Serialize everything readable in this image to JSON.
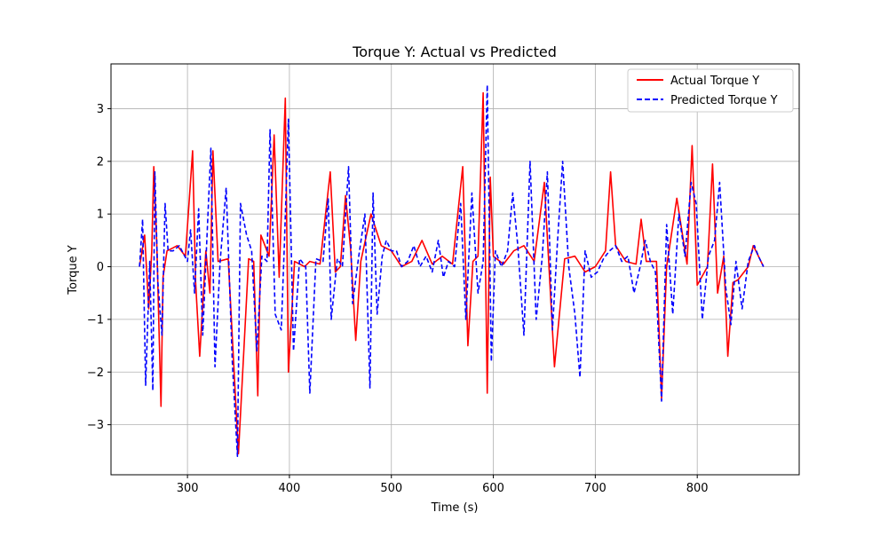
{
  "chart_data": {
    "type": "line",
    "title": "Torque Y: Actual vs Predicted",
    "xlabel": "Time (s)",
    "ylabel": "Torque Y",
    "xlim": [
      225,
      900
    ],
    "ylim": [
      -3.95,
      3.85
    ],
    "x_ticks": [
      300,
      400,
      500,
      600,
      700,
      800
    ],
    "y_ticks": [
      -3,
      -2,
      -1,
      0,
      1,
      2,
      3
    ],
    "x_tick_labels": [
      "300",
      "400",
      "500",
      "600",
      "700",
      "800"
    ],
    "y_tick_labels": [
      "−3",
      "−2",
      "−1",
      "0",
      "1",
      "2",
      "3"
    ],
    "grid": true,
    "legend_position": "top-right",
    "series": [
      {
        "name": "Actual Torque Y",
        "color": "#ff0000",
        "style": "solid",
        "x": [
          253,
          258,
          262,
          265,
          267,
          270,
          274,
          276,
          280,
          285,
          290,
          298,
          305,
          308,
          312,
          318,
          322,
          325,
          330,
          340,
          350,
          360,
          365,
          369,
          372,
          380,
          385,
          390,
          396,
          399,
          405,
          415,
          420,
          430,
          440,
          445,
          450,
          455,
          460,
          465,
          470,
          480,
          490,
          500,
          510,
          520,
          530,
          540,
          550,
          560,
          570,
          575,
          580,
          585,
          590,
          594,
          597,
          600,
          610,
          620,
          630,
          640,
          650,
          660,
          670,
          680,
          690,
          700,
          710,
          715,
          720,
          730,
          740,
          745,
          750,
          760,
          765,
          770,
          780,
          790,
          795,
          800,
          810,
          815,
          820,
          826,
          830,
          835,
          840,
          850,
          855,
          860,
          865
        ],
        "y": [
          0.0,
          0.6,
          -0.8,
          0.3,
          1.9,
          0.35,
          -2.65,
          -0.2,
          0.3,
          0.35,
          0.4,
          0.2,
          2.2,
          -0.3,
          -1.7,
          0.3,
          -0.5,
          2.2,
          0.1,
          0.15,
          -3.55,
          0.15,
          0.1,
          -2.45,
          0.6,
          0.2,
          2.5,
          -0.2,
          3.2,
          -2.0,
          0.1,
          0.0,
          0.1,
          0.05,
          1.8,
          -0.1,
          0.0,
          1.35,
          0.35,
          -1.4,
          0.1,
          1.0,
          0.4,
          0.3,
          0.0,
          0.1,
          0.5,
          0.05,
          0.2,
          0.05,
          1.9,
          -1.5,
          0.1,
          0.2,
          3.3,
          -2.4,
          1.7,
          0.2,
          0.05,
          0.3,
          0.4,
          0.1,
          1.6,
          -1.9,
          0.15,
          0.2,
          -0.1,
          0.0,
          0.3,
          1.8,
          0.4,
          0.1,
          0.05,
          0.9,
          0.1,
          0.1,
          -2.5,
          0.0,
          1.3,
          0.05,
          2.3,
          -0.35,
          0.0,
          1.95,
          -0.5,
          0.2,
          -1.7,
          -0.3,
          -0.25,
          0.0,
          0.4,
          0.2,
          0.0
        ]
      },
      {
        "name": "Predicted Torque Y",
        "color": "#0000ff",
        "style": "dashed",
        "x": [
          253,
          256,
          259,
          263,
          266,
          268,
          271,
          275,
          278,
          281,
          286,
          292,
          300,
          303,
          307,
          311,
          315,
          319,
          323,
          327,
          332,
          338,
          344,
          349,
          352,
          358,
          363,
          368,
          373,
          378,
          381,
          386,
          392,
          395,
          399,
          404,
          410,
          416,
          420,
          426,
          433,
          438,
          441,
          447,
          452,
          458,
          462,
          468,
          474,
          479,
          482,
          486,
          491,
          495,
          500,
          505,
          510,
          516,
          522,
          528,
          534,
          540,
          546,
          551,
          556,
          562,
          568,
          573,
          579,
          585,
          590,
          594,
          598,
          602,
          608,
          614,
          619,
          624,
          630,
          636,
          642,
          648,
          653,
          658,
          663,
          668,
          674,
          680,
          685,
          690,
          696,
          702,
          708,
          714,
          720,
          726,
          732,
          738,
          744,
          749,
          754,
          759,
          765,
          770,
          776,
          782,
          788,
          794,
          799,
          805,
          811,
          817,
          822,
          828,
          833,
          838,
          844,
          850,
          856,
          860,
          865
        ],
        "y": [
          0.0,
          0.9,
          -2.25,
          0.1,
          -2.35,
          1.8,
          -0.3,
          -1.3,
          1.2,
          0.3,
          0.3,
          0.4,
          0.1,
          0.7,
          -0.5,
          1.1,
          -1.3,
          0.5,
          2.25,
          -1.9,
          0.1,
          1.5,
          -1.8,
          -3.6,
          1.2,
          0.6,
          0.3,
          -1.6,
          0.2,
          0.1,
          2.6,
          -0.9,
          -1.2,
          0.4,
          2.8,
          -1.6,
          0.15,
          0.0,
          -2.4,
          0.15,
          0.1,
          1.3,
          -1.0,
          0.15,
          0.0,
          1.9,
          -0.7,
          0.2,
          1.0,
          -2.3,
          1.4,
          -0.9,
          0.2,
          0.5,
          0.3,
          0.3,
          0.0,
          0.1,
          0.4,
          0.0,
          0.2,
          -0.1,
          0.5,
          -0.2,
          0.1,
          0.0,
          1.2,
          -1.0,
          1.4,
          -0.5,
          0.1,
          3.45,
          -1.8,
          0.3,
          0.0,
          0.3,
          1.4,
          0.4,
          -1.3,
          2.0,
          -1.0,
          0.2,
          1.8,
          -1.2,
          0.5,
          2.0,
          0.0,
          -0.9,
          -2.1,
          0.3,
          -0.2,
          -0.1,
          0.15,
          0.3,
          0.4,
          0.1,
          0.2,
          -0.5,
          0.0,
          0.5,
          0.1,
          -0.1,
          -2.55,
          0.8,
          -0.9,
          1.0,
          0.2,
          1.6,
          1.2,
          -1.0,
          0.2,
          0.5,
          1.6,
          -0.4,
          -1.1,
          0.1,
          -0.8,
          0.1,
          0.4,
          0.2,
          0.0
        ]
      }
    ]
  }
}
